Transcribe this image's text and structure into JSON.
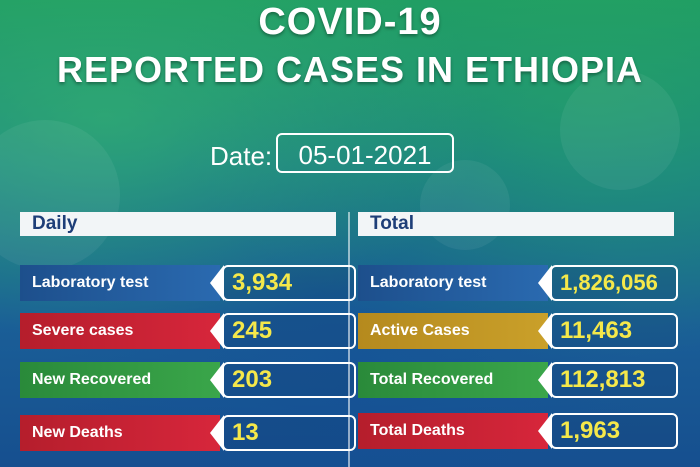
{
  "header": {
    "title_line1": "COVID-19",
    "title_line2": "REPORTED CASES IN ETHIOPIA",
    "date_label": "Date:",
    "date_value": "05-01-2021"
  },
  "daily": {
    "heading": "Daily",
    "rows": [
      {
        "label": "Laboratory test",
        "value": "3,934",
        "color": "#1d4f8c"
      },
      {
        "label": "Severe cases",
        "value": "245",
        "color": "#b51e2c"
      },
      {
        "label": "New Recovered",
        "value": "203",
        "color": "#2a8a3a"
      },
      {
        "label": "New Deaths",
        "value": "13",
        "color": "#d7263b"
      }
    ]
  },
  "total": {
    "heading": "Total",
    "rows": [
      {
        "label": "Laboratory test",
        "value": "1,826,056",
        "color": "#1d4f8c"
      },
      {
        "label": "Active Cases",
        "value": "11,463",
        "color": "#b58a1e"
      },
      {
        "label": "Total Recovered",
        "value": "112,813",
        "color": "#2a8a3a"
      },
      {
        "label": "Total Deaths",
        "value": "1,963",
        "color": "#d7263b"
      }
    ]
  }
}
